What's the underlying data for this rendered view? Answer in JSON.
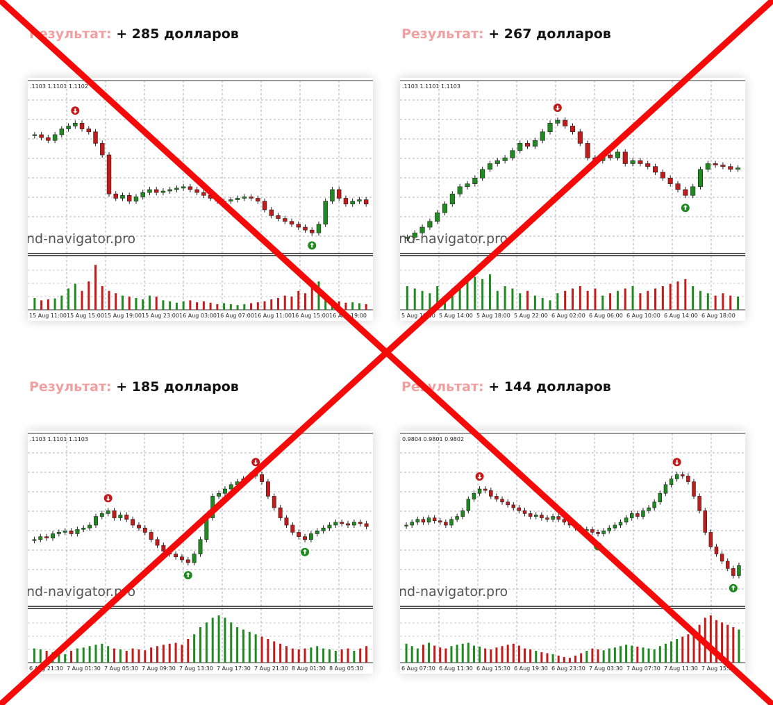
{
  "panels": [
    {
      "label": "Результат:",
      "result": "+ 285 долларов",
      "quote": ".1103 1.1101 1.1102",
      "watermark": "nd-navigator.pro",
      "x_labels": [
        "15 Aug 11:00",
        "15 Aug 15:00",
        "15 Aug 19:00",
        "15 Aug 23:00",
        "16 Aug 03:00",
        "16 Aug 07:00",
        "16 Aug 11:00",
        "16 Aug 15:00",
        "16 Aug 19:00"
      ],
      "candles": [
        76,
        74,
        72,
        76,
        80,
        82,
        84,
        80,
        78,
        70,
        62,
        35,
        32,
        34,
        30,
        33,
        36,
        38,
        36,
        37,
        38,
        39,
        40,
        38,
        36,
        34,
        32,
        30,
        30,
        31,
        32,
        33,
        32,
        30,
        24,
        20,
        18,
        16,
        14,
        12,
        10,
        8,
        14,
        30,
        38,
        32,
        28,
        30,
        31,
        28
      ],
      "volumes": [
        25,
        20,
        22,
        24,
        30,
        45,
        55,
        40,
        60,
        95,
        50,
        40,
        35,
        30,
        28,
        25,
        22,
        30,
        28,
        20,
        18,
        15,
        18,
        20,
        16,
        18,
        15,
        12,
        14,
        12,
        10,
        12,
        14,
        16,
        18,
        22,
        25,
        30,
        28,
        40,
        35,
        50,
        60,
        30,
        22,
        18,
        15,
        16,
        14,
        12
      ],
      "sell_at": [
        6
      ],
      "buy_at": [
        41
      ]
    },
    {
      "label": "Результат:",
      "result": "+ 267 долларов",
      "quote": ".1103 1.1101 1.1103",
      "watermark": "nd-navigator.pro",
      "x_labels": [
        "5 Aug 10:00",
        "5 Aug 14:00",
        "5 Aug 18:00",
        "5 Aug 22:00",
        "6 Aug 02:00",
        "6 Aug 06:00",
        "6 Aug 10:00",
        "6 Aug 14:00",
        "6 Aug 18:00"
      ],
      "candles": [
        5,
        8,
        12,
        16,
        22,
        28,
        35,
        40,
        42,
        46,
        52,
        56,
        58,
        60,
        65,
        70,
        68,
        72,
        78,
        84,
        86,
        82,
        78,
        70,
        60,
        58,
        62,
        60,
        64,
        56,
        58,
        56,
        54,
        50,
        46,
        42,
        38,
        34,
        40,
        52,
        56,
        55,
        54,
        52,
        53
      ],
      "volumes": [
        50,
        45,
        40,
        35,
        50,
        30,
        45,
        55,
        60,
        70,
        65,
        75,
        40,
        50,
        45,
        35,
        40,
        30,
        25,
        20,
        35,
        40,
        45,
        50,
        40,
        45,
        30,
        35,
        40,
        45,
        50,
        35,
        40,
        45,
        50,
        55,
        60,
        65,
        50,
        40,
        35,
        30,
        35,
        30,
        28
      ],
      "sell_at": [
        20
      ],
      "buy_at": [
        37
      ]
    },
    {
      "label": "Результат:",
      "result": "+ 185 долларов",
      "quote": ".1103 1.1101 1.1103",
      "watermark": "nd-navigator.pro",
      "x_labels": [
        "6 Aug 21:30",
        "7 Aug 01:30",
        "7 Aug 05:30",
        "7 Aug 09:30",
        "7 Aug 13:30",
        "7 Aug 17:30",
        "7 Aug 21:30",
        "8 Aug 01:30",
        "8 Aug 05:30"
      ],
      "candles": [
        40,
        42,
        41,
        44,
        45,
        46,
        44,
        47,
        48,
        50,
        56,
        58,
        60,
        55,
        57,
        54,
        50,
        48,
        45,
        40,
        36,
        32,
        30,
        28,
        26,
        24,
        30,
        40,
        55,
        70,
        72,
        75,
        78,
        80,
        82,
        84,
        85,
        80,
        70,
        62,
        55,
        50,
        45,
        42,
        40,
        44,
        46,
        48,
        50,
        52,
        51,
        50,
        52,
        51,
        49
      ],
      "volumes": [
        30,
        28,
        25,
        22,
        20,
        18,
        25,
        30,
        32,
        35,
        38,
        40,
        35,
        30,
        28,
        25,
        30,
        28,
        26,
        32,
        35,
        38,
        40,
        42,
        38,
        50,
        60,
        75,
        85,
        95,
        100,
        95,
        85,
        75,
        70,
        65,
        60,
        55,
        50,
        45,
        40,
        35,
        30,
        28,
        30,
        32,
        35,
        30,
        28,
        25,
        28,
        30,
        25,
        30,
        35
      ],
      "sell_at": [
        12,
        36
      ],
      "buy_at": [
        25,
        44
      ]
    },
    {
      "label": "Результат:",
      "result": "+ 144 долларов",
      "quote": "0.9804 0.9801 0.9802",
      "watermark": "nd-navigator.pro",
      "x_labels": [
        "6 Aug 07:30",
        "6 Aug 11:30",
        "6 Aug 15:30",
        "6 Aug 19:30",
        "6 Aug 23:30",
        "7 Aug 03:30",
        "7 Aug 07:30",
        "7 Aug 11:30",
        "7 Aug 15:30"
      ],
      "candles": [
        50,
        52,
        54,
        52,
        55,
        53,
        52,
        50,
        54,
        56,
        60,
        68,
        72,
        75,
        74,
        70,
        68,
        66,
        64,
        62,
        60,
        58,
        56,
        57,
        55,
        54,
        56,
        54,
        52,
        50,
        48,
        46,
        47,
        45,
        44,
        46,
        48,
        50,
        52,
        55,
        58,
        56,
        60,
        62,
        66,
        72,
        78,
        82,
        85,
        84,
        80,
        70,
        60,
        45,
        35,
        30,
        25,
        20,
        15,
        22
      ],
      "volumes": [
        40,
        35,
        30,
        38,
        42,
        36,
        32,
        30,
        35,
        38,
        40,
        42,
        36,
        34,
        30,
        28,
        32,
        35,
        38,
        40,
        36,
        30,
        28,
        25,
        22,
        20,
        18,
        15,
        12,
        10,
        15,
        20,
        25,
        30,
        28,
        26,
        30,
        32,
        35,
        38,
        36,
        34,
        32,
        30,
        28,
        35,
        40,
        45,
        50,
        55,
        60,
        70,
        80,
        95,
        100,
        90,
        85,
        80,
        75,
        70
      ],
      "sell_at": [
        13,
        48
      ],
      "buy_at": [
        34,
        58
      ]
    }
  ]
}
